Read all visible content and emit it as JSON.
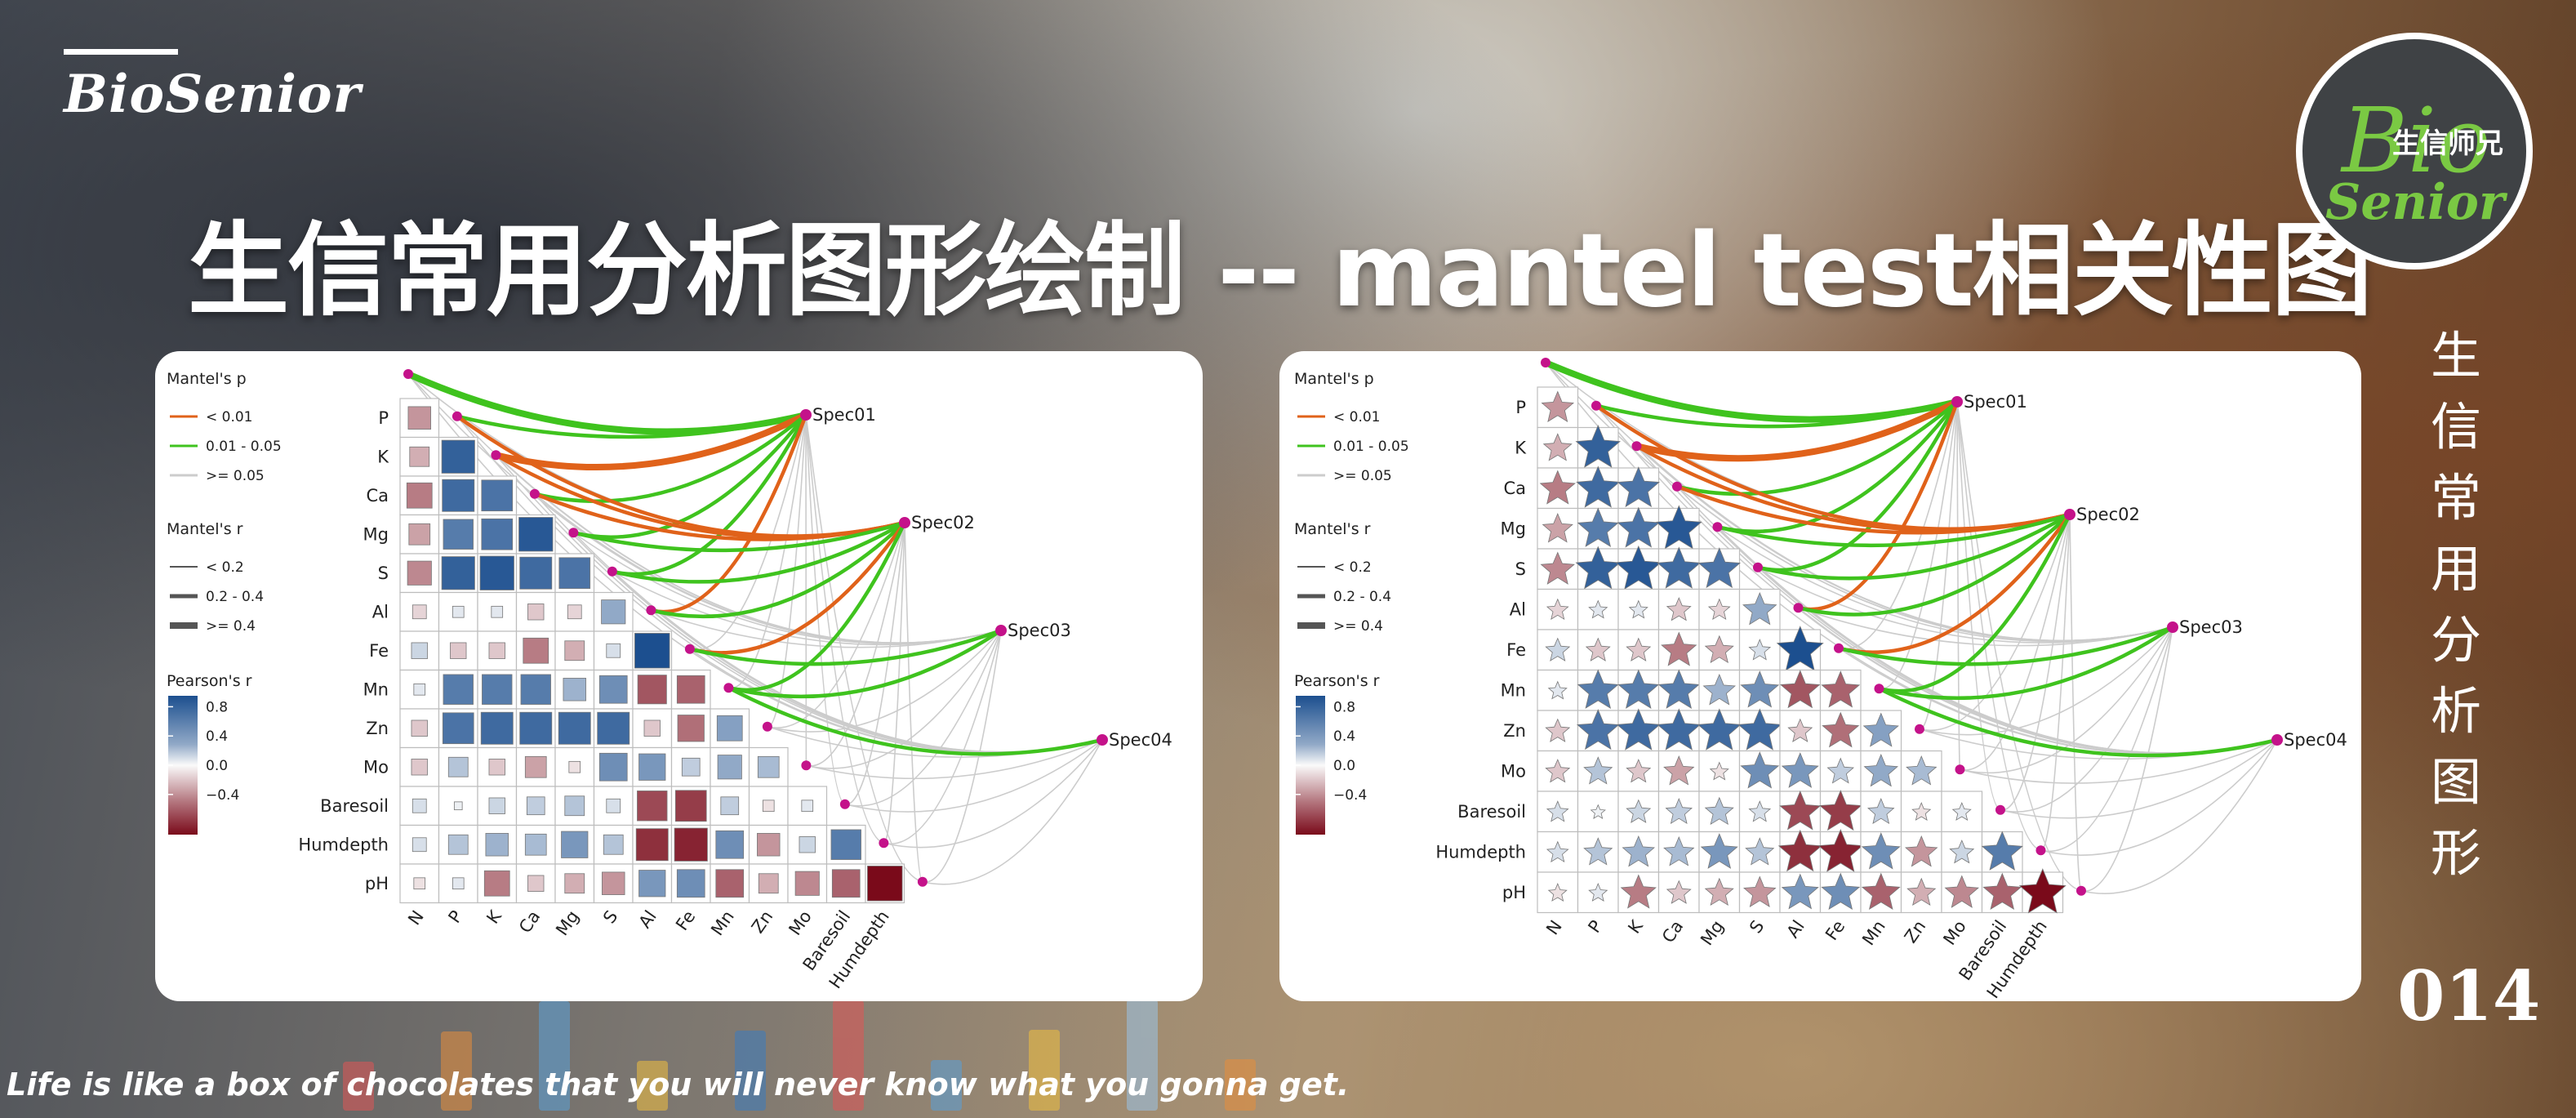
{
  "brand": "BioSenior",
  "title": "生信常用分析图形绘制 -- mantel test相关性图",
  "logo": {
    "bio": "Bio",
    "cn": "生信师兄",
    "senior": "Senior"
  },
  "vertical_title": [
    "生",
    "信",
    "常",
    "用",
    "分",
    "析",
    "图",
    "形"
  ],
  "number": "014",
  "quote": "Life is like a box of chocolates that you will never know what you gonna get.",
  "colors": {
    "p_lt_001": "#e0621a",
    "p_001_005": "#3fc31e",
    "p_ge_005": "#cccccc",
    "pos": "#1c4f8f",
    "neg": "#7a0a1a",
    "node": "#c4128a"
  },
  "chart_data": [
    {
      "type": "heatmap",
      "shape": "square",
      "variables": [
        "P",
        "K",
        "Ca",
        "Mg",
        "S",
        "Al",
        "Fe",
        "Mn",
        "Zn",
        "Mo",
        "Baresoil",
        "Humdepth",
        "pH"
      ],
      "x_labels": [
        "N",
        "P",
        "K",
        "Ca",
        "Mg",
        "S",
        "Al",
        "Fe",
        "Mn",
        "Zn",
        "Mo",
        "Baresoil",
        "Humdepth"
      ],
      "species": [
        "Spec01",
        "Spec02",
        "Spec03",
        "Spec04"
      ],
      "legend": {
        "mantel_p_title": "Mantel's p",
        "mantel_p": [
          "< 0.01",
          "0.01 - 0.05",
          ">= 0.05"
        ],
        "mantel_r_title": "Mantel's r",
        "mantel_r": [
          "< 0.2",
          "0.2 - 0.4",
          ">= 0.4"
        ],
        "pearson_title": "Pearson's r",
        "pearson_ticks": [
          "0.8",
          "0.4",
          "0.0",
          "−0.4"
        ]
      },
      "matrix": [
        [
          -0.4
        ],
        [
          -0.3,
          0.85
        ],
        [
          -0.5,
          0.8,
          0.75
        ],
        [
          -0.35,
          0.7,
          0.75,
          0.9
        ],
        [
          -0.45,
          0.85,
          0.9,
          0.8,
          0.75
        ],
        [
          -0.15,
          0.1,
          0.1,
          -0.2,
          -0.15,
          0.45
        ],
        [
          0.2,
          -0.2,
          -0.2,
          -0.5,
          -0.3,
          0.15,
          0.95
        ],
        [
          0.1,
          0.7,
          0.7,
          0.7,
          0.4,
          0.6,
          -0.65,
          -0.6
        ],
        [
          -0.2,
          0.75,
          0.8,
          0.8,
          0.8,
          0.8,
          -0.2,
          -0.55,
          0.5
        ],
        [
          -0.2,
          0.3,
          -0.2,
          -0.35,
          -0.1,
          0.6,
          0.55,
          0.25,
          0.45,
          0.35
        ],
        [
          0.15,
          0.05,
          0.2,
          0.25,
          0.3,
          0.15,
          -0.7,
          -0.75,
          0.25,
          -0.1,
          0.1
        ],
        [
          0.15,
          0.3,
          0.4,
          0.35,
          0.55,
          0.3,
          -0.8,
          -0.85,
          0.6,
          -0.4,
          0.2,
          0.7
        ],
        [
          -0.1,
          0.1,
          -0.5,
          -0.2,
          -0.3,
          -0.4,
          0.55,
          0.6,
          -0.6,
          -0.3,
          -0.45,
          -0.6,
          -0.95
        ]
      ],
      "links": [
        {
          "spec": "Spec01",
          "var": "N",
          "p": "0.01 - 0.05",
          "r": ">= 0.4"
        },
        {
          "spec": "Spec01",
          "var": "P",
          "p": "0.01 - 0.05",
          "r": "0.2 - 0.4"
        },
        {
          "spec": "Spec01",
          "var": "K",
          "p": "< 0.01",
          "r": ">= 0.4"
        },
        {
          "spec": "Spec01",
          "var": "Ca",
          "p": "0.01 - 0.05",
          "r": "0.2 - 0.4"
        },
        {
          "spec": "Spec01",
          "var": "Mg",
          "p": "0.01 - 0.05",
          "r": "0.2 - 0.4"
        },
        {
          "spec": "Spec01",
          "var": "S",
          "p": "0.01 - 0.05",
          "r": "0.2 - 0.4"
        },
        {
          "spec": "Spec01",
          "var": "Al",
          "p": "< 0.01",
          "r": "0.2 - 0.4"
        },
        {
          "spec": "Spec02",
          "var": "P",
          "p": "< 0.01",
          "r": "0.2 - 0.4"
        },
        {
          "spec": "Spec02",
          "var": "K",
          "p": "< 0.01",
          "r": "0.2 - 0.4"
        },
        {
          "spec": "Spec02",
          "var": "Ca",
          "p": "< 0.01",
          "r": "0.2 - 0.4"
        },
        {
          "spec": "Spec02",
          "var": "Mg",
          "p": "0.01 - 0.05",
          "r": "0.2 - 0.4"
        },
        {
          "spec": "Spec02",
          "var": "S",
          "p": "0.01 - 0.05",
          "r": "0.2 - 0.4"
        },
        {
          "spec": "Spec02",
          "var": "Al",
          "p": "0.01 - 0.05",
          "r": "0.2 - 0.4"
        },
        {
          "spec": "Spec02",
          "var": "Fe",
          "p": "< 0.01",
          "r": "0.2 - 0.4"
        },
        {
          "spec": "Spec02",
          "var": "Mn",
          "p": "0.01 - 0.05",
          "r": "0.2 - 0.4"
        },
        {
          "spec": "Spec03",
          "var": "Fe",
          "p": "0.01 - 0.05",
          "r": "0.2 - 0.4"
        },
        {
          "spec": "Spec03",
          "var": "Mn",
          "p": "0.01 - 0.05",
          "r": "0.2 - 0.4"
        },
        {
          "spec": "Spec04",
          "var": "Mn",
          "p": "0.01 - 0.05",
          "r": "0.2 - 0.4"
        }
      ]
    },
    {
      "type": "heatmap",
      "shape": "star",
      "variables": [
        "P",
        "K",
        "Ca",
        "Mg",
        "S",
        "Al",
        "Fe",
        "Mn",
        "Zn",
        "Mo",
        "Baresoil",
        "Humdepth",
        "pH"
      ],
      "x_labels": [
        "N",
        "P",
        "K",
        "Ca",
        "Mg",
        "S",
        "Al",
        "Fe",
        "Mn",
        "Zn",
        "Mo",
        "Baresoil",
        "Humdepth"
      ],
      "species": [
        "Spec01",
        "Spec02",
        "Spec03",
        "Spec04"
      ],
      "legend": {
        "mantel_p_title": "Mantel's p",
        "mantel_p": [
          "< 0.01",
          "0.01 - 0.05",
          ">= 0.05"
        ],
        "mantel_r_title": "Mantel's r",
        "mantel_r": [
          "< 0.2",
          "0.2 - 0.4",
          ">= 0.4"
        ],
        "pearson_title": "Pearson's r",
        "pearson_ticks": [
          "0.8",
          "0.4",
          "0.0",
          "−0.4"
        ]
      },
      "matrix": "same as chart 1",
      "links": "same as chart 1"
    }
  ]
}
